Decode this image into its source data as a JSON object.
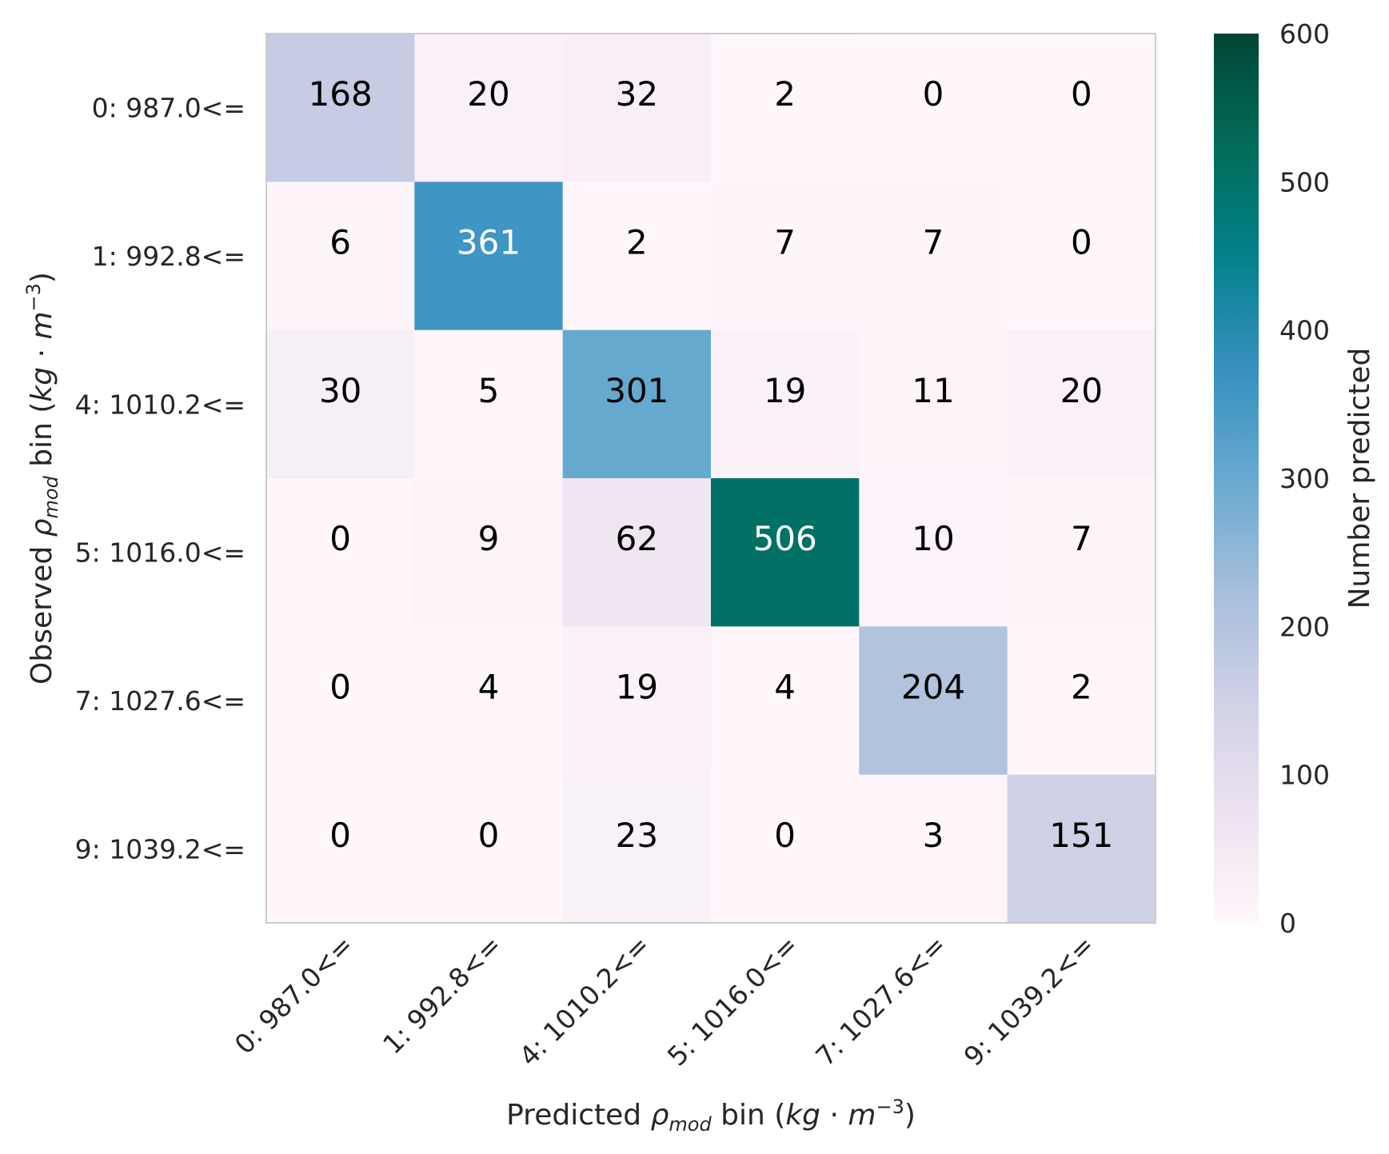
{
  "chart_data": {
    "type": "heatmap",
    "title": "",
    "xlabel": {
      "prefix": "Predicted ",
      "symbol": "ρ",
      "sub": "mod",
      "middle": " bin (",
      "unit_a": "kg",
      "dot": " · ",
      "unit_b": "m",
      "sup": "−3",
      "suffix": ")"
    },
    "ylabel": {
      "prefix": "Observed ",
      "symbol": "ρ",
      "sub": "mod",
      "middle": " bin (",
      "unit_a": "kg",
      "dot": " · ",
      "unit_b": "m",
      "sup": "−3",
      "suffix": ")"
    },
    "x_categories": [
      "0: 987.0<=",
      "1: 992.8<=",
      "4: 1010.2<=",
      "5: 1016.0<=",
      "7: 1027.6<=",
      "9: 1039.2<="
    ],
    "y_categories": [
      "0: 987.0<=",
      "1: 992.8<=",
      "4: 1010.2<=",
      "5: 1016.0<=",
      "7: 1027.6<=",
      "9: 1039.2<="
    ],
    "values": [
      [
        168,
        20,
        32,
        2,
        0,
        0
      ],
      [
        6,
        361,
        2,
        7,
        7,
        0
      ],
      [
        30,
        5,
        301,
        19,
        11,
        20
      ],
      [
        0,
        9,
        62,
        506,
        10,
        7
      ],
      [
        0,
        4,
        19,
        4,
        204,
        2
      ],
      [
        0,
        0,
        23,
        0,
        3,
        151
      ]
    ],
    "colorbar": {
      "label": "Number predicted",
      "range": [
        0,
        600
      ],
      "ticks": [
        0,
        100,
        200,
        300,
        400,
        500,
        600
      ],
      "colormap": "PuBuGn",
      "stops": [
        "#fff7fb",
        "#ece2f0",
        "#d0d1e6",
        "#a6bddb",
        "#67a9cf",
        "#3690c0",
        "#02818a",
        "#016c59",
        "#014636"
      ]
    },
    "annotation_colors": {
      "dark": "#000000",
      "light": "#ffffff"
    },
    "grid": false
  }
}
